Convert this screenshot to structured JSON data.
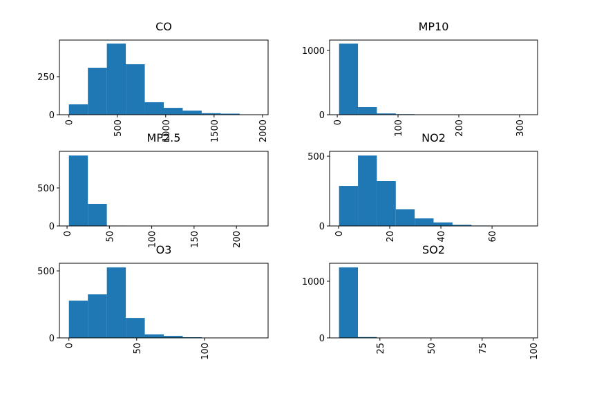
{
  "chart_data": [
    {
      "type": "histogram",
      "title": "CO",
      "color": "#1f77b4",
      "bins": [
        0,
        196,
        392,
        588,
        784,
        980,
        1176,
        1372,
        1568,
        1764,
        1960
      ],
      "counts": [
        68,
        309,
        468,
        332,
        82,
        45,
        27,
        10,
        7,
        2
      ],
      "xlim": [
        -98,
        2058
      ],
      "ylim": [
        0,
        491
      ],
      "xticks": [
        0,
        500,
        1000,
        1500,
        2000
      ],
      "yticks": [
        0,
        250
      ]
    },
    {
      "type": "histogram",
      "title": "MP10",
      "color": "#1f77b4",
      "bins": [
        3,
        34.1,
        65.2,
        96.3,
        127.4,
        158.5,
        189.6,
        220.7,
        251.8,
        282.9,
        314
      ],
      "counts": [
        1106,
        118,
        20,
        8,
        4,
        2,
        1,
        1,
        0,
        1
      ],
      "xlim": [
        -12.6,
        329.6
      ],
      "ylim": [
        0,
        1161
      ],
      "xticks": [
        0,
        100,
        200,
        300
      ],
      "yticks": [
        0,
        1000
      ]
    },
    {
      "type": "histogram",
      "title": "MP2.5",
      "color": "#1f77b4",
      "bins": [
        2.2,
        24.6,
        47,
        69.4,
        91.8,
        114.2,
        136.6,
        159,
        181.4,
        203.8,
        226.2
      ],
      "counts": [
        927,
        291,
        5,
        2,
        1,
        1,
        0,
        0,
        0,
        1
      ],
      "xlim": [
        -9,
        237.4
      ],
      "ylim": [
        0,
        982
      ],
      "xticks": [
        0,
        50,
        100,
        150,
        200
      ],
      "yticks": [
        0,
        500
      ]
    },
    {
      "type": "histogram",
      "title": "NO2",
      "color": "#1f77b4",
      "bins": [
        0.2,
        7.59,
        14.98,
        22.37,
        29.76,
        37.15,
        44.54,
        51.93,
        59.32,
        66.71,
        74.1
      ],
      "counts": [
        287,
        505,
        322,
        119,
        54,
        25,
        8,
        3,
        1,
        1
      ],
      "xlim": [
        -3.5,
        77.8
      ],
      "ylim": [
        0,
        535
      ],
      "xticks": [
        0,
        20,
        40,
        60
      ],
      "yticks": [
        0,
        500
      ]
    },
    {
      "type": "histogram",
      "title": "O3",
      "color": "#1f77b4",
      "bins": [
        0,
        14,
        28,
        42,
        56,
        70,
        84,
        98,
        112,
        126,
        140
      ],
      "counts": [
        278,
        325,
        526,
        149,
        26,
        15,
        5,
        1,
        1,
        1
      ],
      "xlim": [
        -7,
        147
      ],
      "ylim": [
        0,
        557
      ],
      "xticks": [
        0,
        50,
        100
      ],
      "yticks": [
        0,
        500
      ]
    },
    {
      "type": "histogram",
      "title": "SO2",
      "color": "#1f77b4",
      "bins": [
        5,
        14.25,
        23.5,
        32.75,
        42,
        51.25,
        60.5,
        69.75,
        79,
        88.25,
        97.5
      ],
      "counts": [
        1244,
        15,
        3,
        1,
        1,
        1,
        0,
        0,
        0,
        1
      ],
      "xlim": [
        0.4,
        102.1
      ],
      "ylim": [
        0,
        1317
      ],
      "xticks": [
        25,
        50,
        75,
        100
      ],
      "yticks": [
        0,
        1000
      ]
    }
  ]
}
